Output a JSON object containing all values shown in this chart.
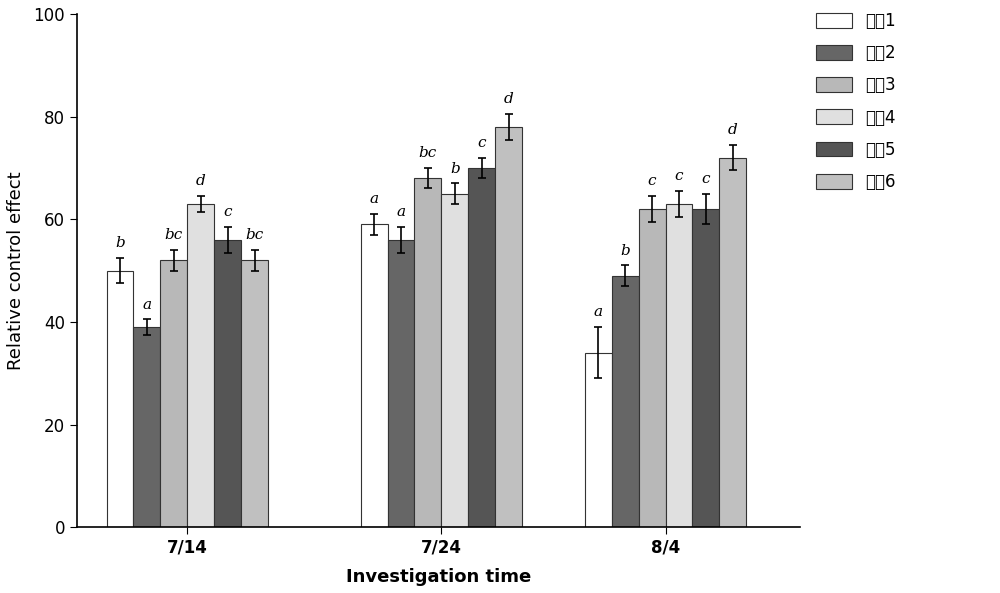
{
  "groups": [
    "7/14",
    "7/24",
    "8/4"
  ],
  "series_labels": [
    "处理1",
    "处理2",
    "处理3",
    "处理4",
    "处理5",
    "处理6"
  ],
  "bar_colors": [
    "#ffffff",
    "#666666",
    "#b8b8b8",
    "#e0e0e0",
    "#555555",
    "#c0c0c0"
  ],
  "bar_edgecolors": [
    "#333333",
    "#333333",
    "#333333",
    "#333333",
    "#333333",
    "#333333"
  ],
  "values": [
    [
      50,
      39,
      52,
      63,
      56,
      52
    ],
    [
      59,
      56,
      68,
      65,
      70,
      78
    ],
    [
      34,
      49,
      62,
      63,
      62,
      72
    ]
  ],
  "errors": [
    [
      2.5,
      1.5,
      2.0,
      1.5,
      2.5,
      2.0
    ],
    [
      2.0,
      2.5,
      2.0,
      2.0,
      2.0,
      2.5
    ],
    [
      5.0,
      2.0,
      2.5,
      2.5,
      3.0,
      2.5
    ]
  ],
  "sig_labels": [
    [
      "b",
      "a",
      "bc",
      "d",
      "c",
      "bc"
    ],
    [
      "a",
      "a",
      "bc",
      "b",
      "c",
      "d"
    ],
    [
      "a",
      "b",
      "c",
      "c",
      "c",
      "d"
    ]
  ],
  "ylabel": "Relative control effect",
  "xlabel": "Investigation time",
  "ylim": [
    0,
    100
  ],
  "yticks": [
    0,
    20,
    40,
    60,
    80,
    100
  ],
  "bar_width": 0.09,
  "group_centers": [
    0.42,
    1.27,
    2.02
  ],
  "label_fontsize": 13,
  "tick_fontsize": 12,
  "legend_fontsize": 12,
  "sig_fontsize": 11
}
